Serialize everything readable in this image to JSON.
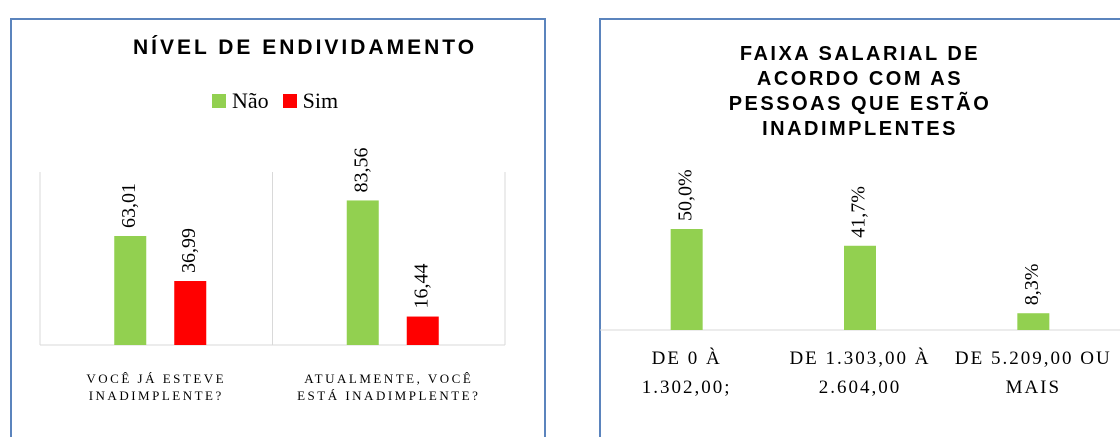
{
  "chart_data": [
    {
      "type": "bar",
      "title": "NÍVEL DE ENDIVIDAMENTO",
      "categories": [
        "VOCÊ JÁ ESTEVE INADIMPLENTE?",
        "ATUALMENTE, VOCÊ ESTÁ INADIMPLENTE?"
      ],
      "series": [
        {
          "name": "Não",
          "color": "#92d050",
          "values": [
            63.01,
            83.56
          ],
          "value_labels": [
            "63,01",
            "83,56"
          ]
        },
        {
          "name": "Sim",
          "color": "#ff0000",
          "values": [
            36.99,
            16.44
          ],
          "value_labels": [
            "36,99",
            "16,44"
          ]
        }
      ],
      "ylim": [
        0,
        100
      ],
      "legend": "top"
    },
    {
      "type": "bar",
      "title": "FAIXA SALARIAL DE ACORDO COM AS PESSOAS QUE ESTÃO INADIMPLENTES",
      "categories": [
        "DE 0 À 1.302,00;",
        "DE 1.303,00 À 2.604,00",
        "DE 5.209,00 OU MAIS"
      ],
      "values": [
        50.0,
        41.7,
        8.3
      ],
      "value_labels": [
        "50,0%",
        "41,7%",
        "8,3%"
      ],
      "color": "#92d050",
      "ylim": [
        0,
        100
      ]
    }
  ]
}
